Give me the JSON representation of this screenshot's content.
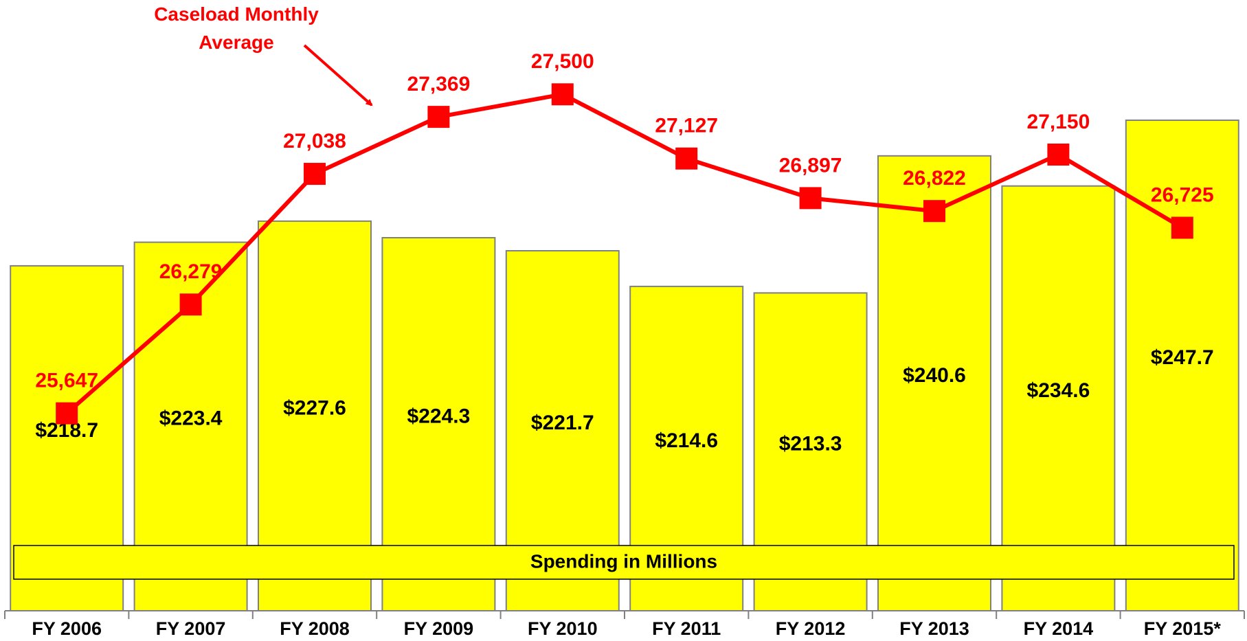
{
  "chart_data": {
    "type": "bar_line",
    "categories": [
      "FY 2006",
      "FY 2007",
      "FY 2008",
      "FY 2009",
      "FY 2010",
      "FY 2011",
      "FY 2012",
      "FY 2013",
      "FY 2014",
      "FY 2015*"
    ],
    "series": [
      {
        "name": "Spending in Millions",
        "type": "bar",
        "color": "#ffff00",
        "values": [
          218.7,
          223.4,
          227.6,
          224.3,
          221.7,
          214.6,
          213.3,
          240.6,
          234.6,
          247.7
        ],
        "value_labels": [
          "$218.7",
          "$223.4",
          "$227.6",
          "$224.3",
          "$221.7",
          "$214.6",
          "$213.3",
          "$240.6",
          "$234.6",
          "$247.7"
        ]
      },
      {
        "name": "Caseload Monthly Average",
        "type": "line",
        "axis": "y2",
        "color": "#ff0000",
        "values": [
          25647,
          26279,
          27038,
          27369,
          27500,
          27127,
          26897,
          26822,
          27150,
          26725
        ],
        "value_labels": [
          "25,647",
          "26,279",
          "27,038",
          "27,369",
          "27,500",
          "27,127",
          "26,897",
          "26,822",
          "27,150",
          "26,725"
        ]
      }
    ],
    "ylim": [
      150,
      270
    ],
    "y2lim": [
      24500,
      28000
    ]
  }
}
